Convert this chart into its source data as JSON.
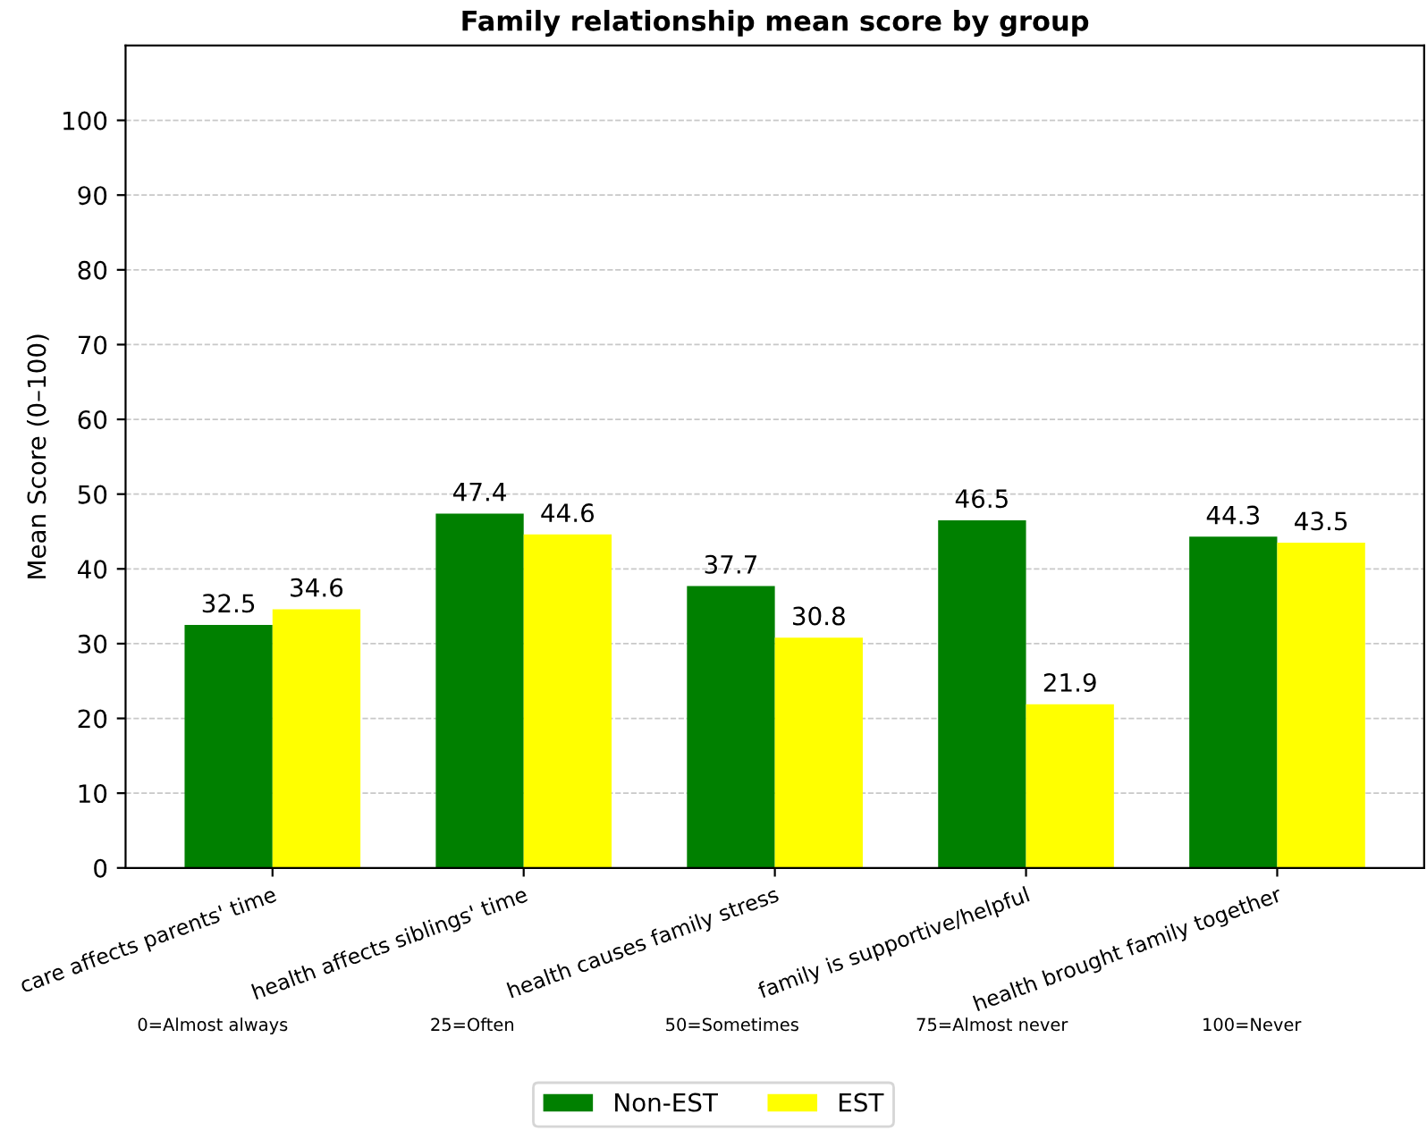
{
  "chart_data": {
    "type": "bar",
    "title": "Family relationship mean score by group",
    "ylabel": "Mean Score (0–100)",
    "categories": [
      "care affects parents' time",
      "health affects siblings' time",
      "health causes family stress",
      "family is supportive/helpful",
      "health brought family together"
    ],
    "series": [
      {
        "name": "Non-EST",
        "color": "#008000",
        "values": [
          32.5,
          47.4,
          37.7,
          46.5,
          44.3
        ]
      },
      {
        "name": "EST",
        "color": "#ffff00",
        "values": [
          34.6,
          44.6,
          30.8,
          21.9,
          43.5
        ]
      }
    ],
    "ylim": [
      0,
      110
    ],
    "yticks": [
      0,
      10,
      20,
      30,
      40,
      50,
      60,
      70,
      80,
      90,
      100
    ],
    "grid": "y",
    "legend": "bottom",
    "data_labels": true,
    "annotations": [
      "0=Almost always",
      "25=Often",
      "50=Sometimes",
      "75=Almost never",
      "100=Never"
    ]
  }
}
